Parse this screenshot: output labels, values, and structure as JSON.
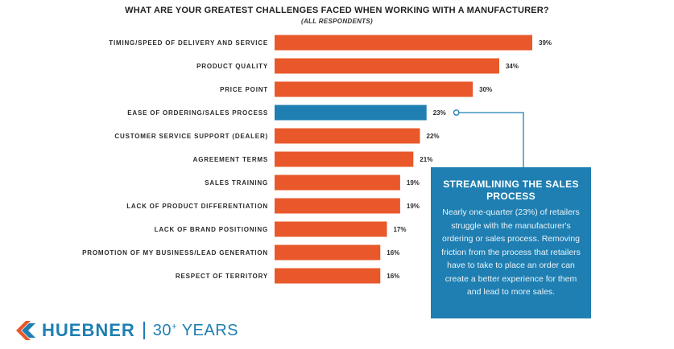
{
  "chart_data": {
    "type": "bar",
    "orientation": "horizontal",
    "title": "WHAT ARE YOUR GREATEST CHALLENGES FACED WHEN WORKING WITH A MANUFACTURER?",
    "subtitle": "(ALL RESPONDENTS)",
    "categories": [
      "TIMING/SPEED OF DELIVERY AND SERVICE",
      "PRODUCT QUALITY",
      "PRICE POINT",
      "EASE OF ORDERING/SALES PROCESS",
      "CUSTOMER SERVICE SUPPORT (DEALER)",
      "AGREEMENT TERMS",
      "SALES TRAINING",
      "LACK OF PRODUCT DIFFERENTIATION",
      "LACK OF BRAND POSITIONING",
      "PROMOTION OF MY BUSINESS/LEAD GENERATION",
      "RESPECT OF TERRITORY"
    ],
    "values": [
      39,
      34,
      30,
      23,
      22,
      21,
      19,
      19,
      17,
      16,
      16
    ],
    "value_labels": [
      "39%",
      "34%",
      "30%",
      "23%",
      "22%",
      "21%",
      "19%",
      "19%",
      "17%",
      "16%",
      "16%"
    ],
    "highlight_index": 3,
    "colors": {
      "default": "#e8582a",
      "highlight": "#1f7fb2"
    },
    "xlim": [
      0,
      39
    ]
  },
  "callout": {
    "title": "STREAMLINING THE SALES PROCESS",
    "body": "Nearly one-quarter (23%) of retailers struggle with the manufacturer's ordering or sales process. Removing friction from the process that retailers have to take to place an order can create a better experience for them and lead to more sales."
  },
  "brand": {
    "name": "HUEBNER",
    "years": "30",
    "years_plus": "+",
    "years_word": "YEARS",
    "color": "#1f7fb2"
  }
}
